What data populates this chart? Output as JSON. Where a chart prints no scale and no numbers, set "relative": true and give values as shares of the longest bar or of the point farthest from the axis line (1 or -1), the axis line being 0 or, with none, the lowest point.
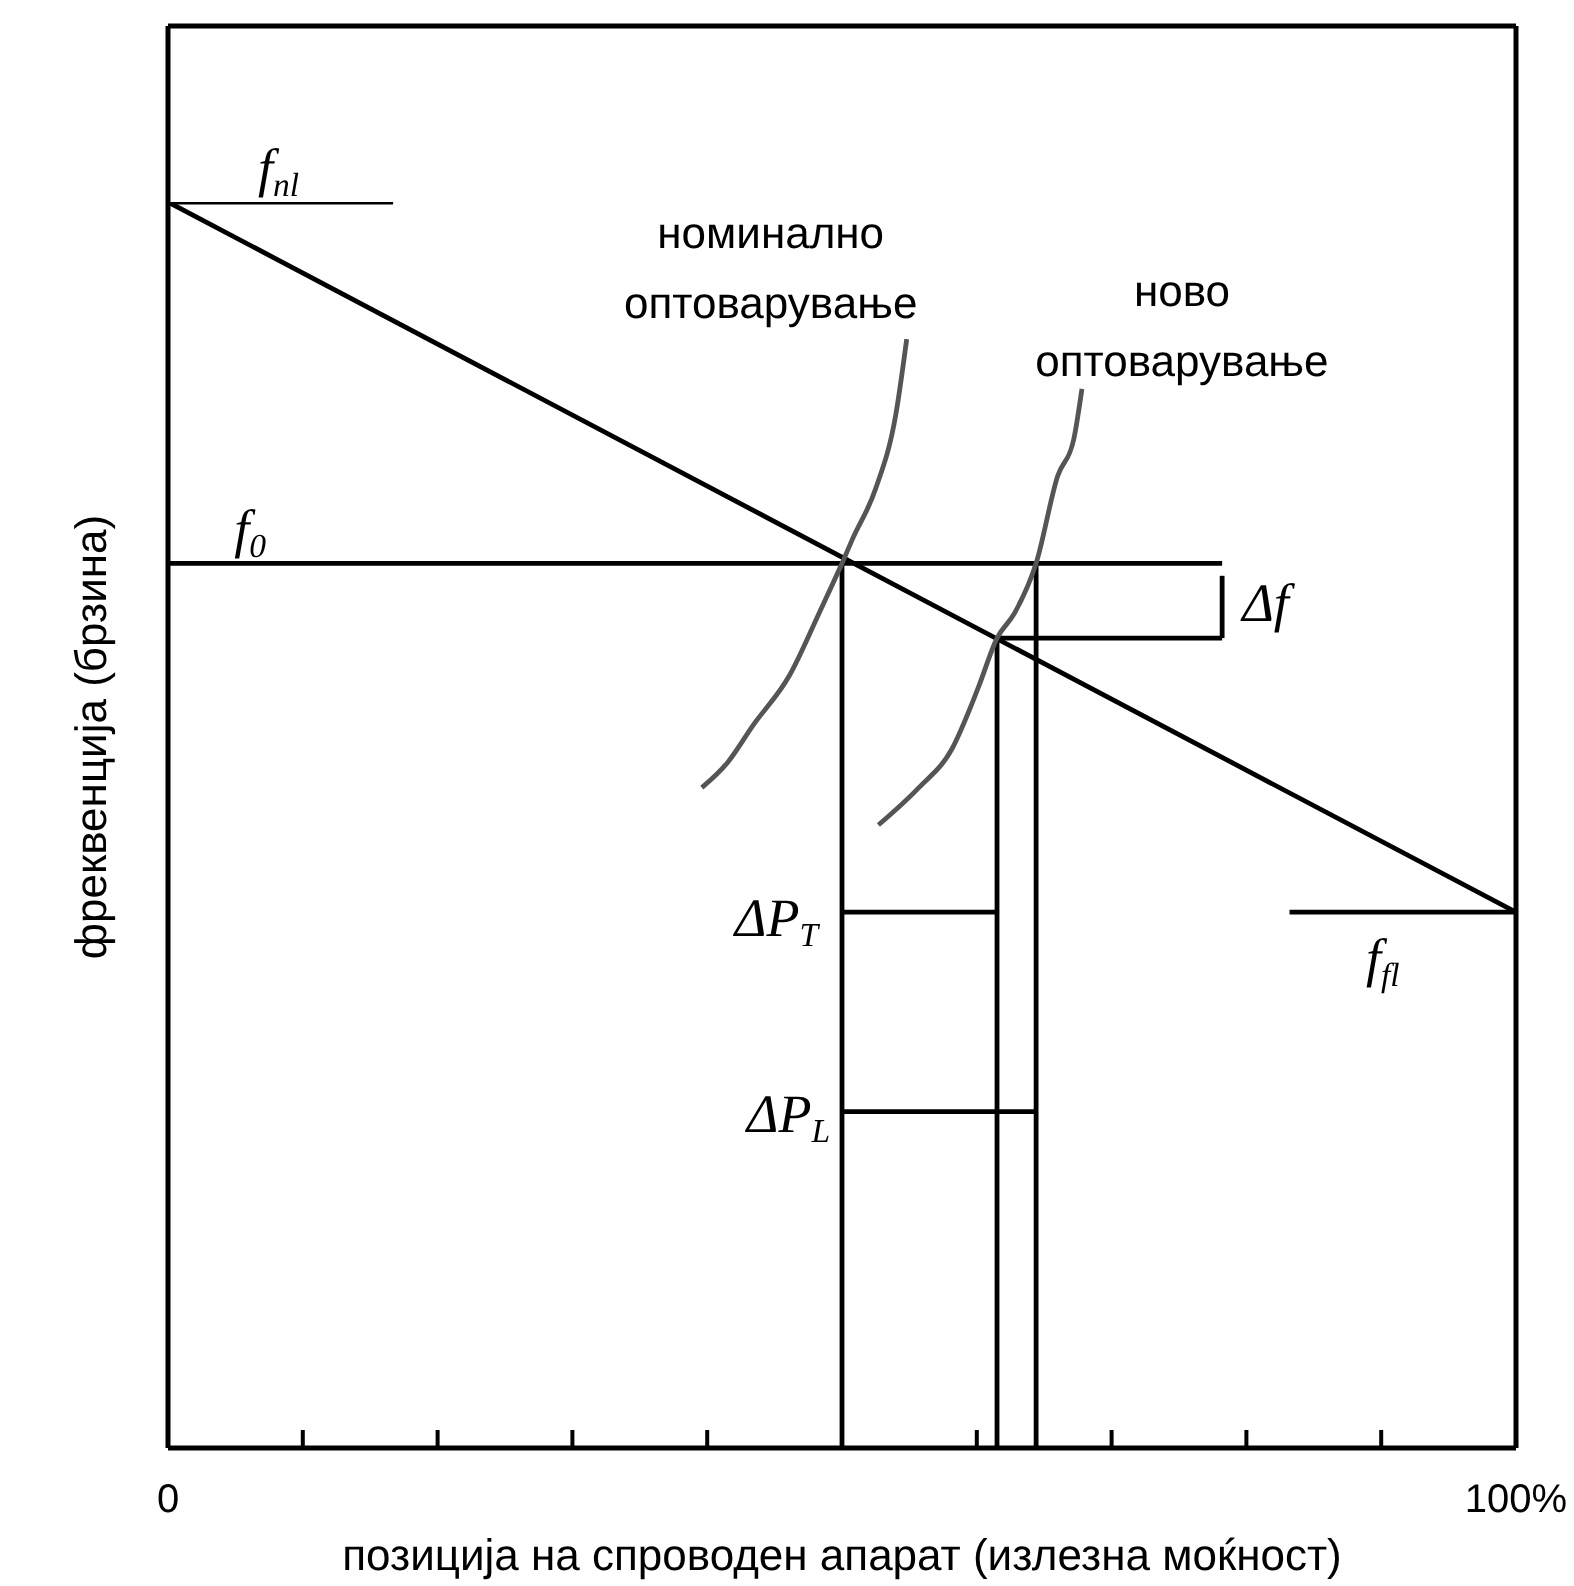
{
  "chart_data": {
    "type": "line",
    "relative": true,
    "xlabel": "позиција на спроводен апарат (излезна моќност)",
    "ylabel": "фреквенција (брзина)",
    "xlim": [
      0,
      100
    ],
    "xticks": [
      {
        "value": 0,
        "label": "0"
      },
      {
        "value": 10,
        "label": null
      },
      {
        "value": 20,
        "label": null
      },
      {
        "value": 30,
        "label": null
      },
      {
        "value": 40,
        "label": null
      },
      {
        "value": 50,
        "label": null
      },
      {
        "value": 60,
        "label": null
      },
      {
        "value": 70,
        "label": null
      },
      {
        "value": 80,
        "label": null
      },
      {
        "value": 90,
        "label": null
      },
      {
        "value": 100,
        "label": "100%"
      }
    ],
    "marker": "none",
    "line_style": "solid",
    "series": [
      {
        "x": [
          0,
          100
        ],
        "values": [
          1,
          0.43
        ],
        "color": "#000000"
      },
      {
        "x": [
          0,
          16.7
        ],
        "values": [
          1,
          1
        ],
        "color": "#000000"
      },
      {
        "x": [
          0,
          78.2
        ],
        "values": [
          0.71,
          0.71
        ],
        "color": "#000000"
      },
      {
        "x": [
          83.2,
          100
        ],
        "values": [
          0.43,
          0.43
        ],
        "color": "#000000"
      },
      {
        "x": [
          61.5,
          78.2
        ],
        "values": [
          0.65,
          0.65
        ],
        "color": "#000000"
      },
      {
        "x": [
          78.2,
          78.2
        ],
        "values": [
          0.7,
          0.65
        ],
        "color": "#000000"
      },
      {
        "x": [
          50,
          50
        ],
        "values": [
          0.71,
          0
        ],
        "color": "#000000"
      },
      {
        "x": [
          61.5,
          61.5
        ],
        "values": [
          0.65,
          0
        ],
        "color": "#000000"
      },
      {
        "x": [
          64.4,
          64.4
        ],
        "values": [
          0.71,
          0
        ],
        "color": "#000000"
      },
      {
        "x": [
          50,
          61.5
        ],
        "values": [
          0.43,
          0.43
        ],
        "color": "#000000"
      },
      {
        "x": [
          50,
          64.4
        ],
        "values": [
          0.27,
          0.27
        ],
        "color": "#000000"
      },
      {
        "name": "номинално оптоварување",
        "color": "#555555",
        "x": [
          39.6,
          41.5,
          43.4,
          46.1,
          48.3,
          50,
          50.8,
          52.5,
          54,
          54.8
        ],
        "values": [
          0.53,
          0.55,
          0.58,
          0.62,
          0.67,
          0.71,
          0.73,
          0.77,
          0.83,
          0.89
        ]
      },
      {
        "name": "ново оптоварување",
        "color": "#555555",
        "x": [
          52.7,
          55.7,
          58.1,
          60.1,
          61.5,
          62.8,
          64.4,
          66,
          67.2,
          67.8
        ],
        "values": [
          0.5,
          0.53,
          0.56,
          0.61,
          0.65,
          0.67,
          0.71,
          0.78,
          0.81,
          0.85
        ]
      }
    ],
    "annotations": [
      {
        "text": "f$_{nl}$",
        "x": 8.2,
        "y": 1
      },
      {
        "text": "f$_{0}$",
        "x": 6.1,
        "y": 0.71
      },
      {
        "text": "f$_{fl}$",
        "x": 91.6,
        "y": 0.43
      },
      {
        "text": "Δf",
        "x": 78.2,
        "y": 0.68
      },
      {
        "text": "ΔP$_{T}$",
        "x": 50,
        "y": 0.43
      },
      {
        "text": "ΔP$_{L}$",
        "x": 50,
        "y": 0.27
      }
    ]
  }
}
